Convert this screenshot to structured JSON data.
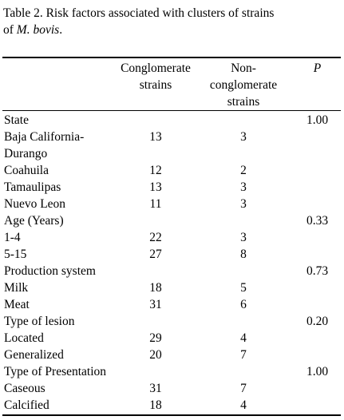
{
  "caption": {
    "line1": "Table 2. Risk factors associated with clusters of strains",
    "line2_prefix": "of ",
    "line2_italic": "M. bovis",
    "line2_suffix": "."
  },
  "headers": {
    "col1_line1": "Conglomerate",
    "col1_line2": "strains",
    "col2_line1": "Non-",
    "col2_line2": "conglomerate",
    "col2_line3": "strains",
    "p": "P"
  },
  "rows": [
    {
      "label": "State",
      "c1": "",
      "c2": "",
      "p": "1.00"
    },
    {
      "label": "Baja California-",
      "label2": "Durango",
      "c1": "13",
      "c2": "3",
      "p": ""
    },
    {
      "label": "Coahuila",
      "c1": "12",
      "c2": "2",
      "p": ""
    },
    {
      "label": "Tamaulipas",
      "c1": "13",
      "c2": "3",
      "p": ""
    },
    {
      "label": "Nuevo Leon",
      "c1": "11",
      "c2": "3",
      "p": ""
    },
    {
      "label": "Age (Years)",
      "c1": "",
      "c2": "",
      "p": "0.33"
    },
    {
      "label": "1-4",
      "c1": "22",
      "c2": "3",
      "p": ""
    },
    {
      "label": "5-15",
      "c1": "27",
      "c2": "8",
      "p": ""
    },
    {
      "label": "Production system",
      "c1": "",
      "c2": "",
      "p": "0.73"
    },
    {
      "label": "Milk",
      "c1": "18",
      "c2": "5",
      "p": ""
    },
    {
      "label": "Meat",
      "c1": "31",
      "c2": "6",
      "p": ""
    },
    {
      "label": "Type of lesion",
      "c1": "",
      "c2": "",
      "p": "0.20"
    },
    {
      "label": "Located",
      "c1": "29",
      "c2": "4",
      "p": ""
    },
    {
      "label": "Generalized",
      "c1": "20",
      "c2": "7",
      "p": ""
    },
    {
      "label": "Type of Presentation",
      "c1": "",
      "c2": "",
      "p": "1.00"
    },
    {
      "label": "Caseous",
      "c1": "31",
      "c2": "7",
      "p": ""
    },
    {
      "label": "Calcified",
      "c1": "18",
      "c2": "4",
      "p": ""
    }
  ]
}
